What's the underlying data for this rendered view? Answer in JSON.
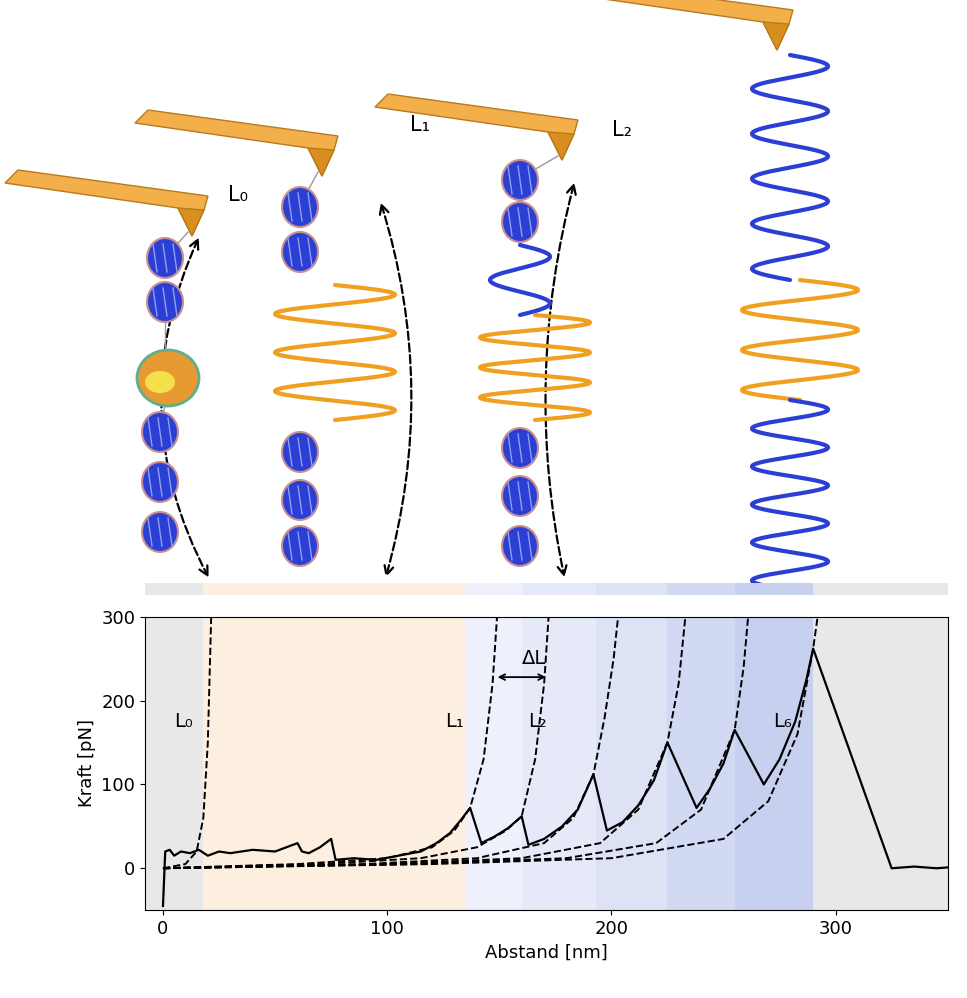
{
  "chart_data": {
    "type": "line",
    "x_label": "Abstand [nm]",
    "y_label": "Kraft [pN]",
    "xlim": [
      -8,
      350
    ],
    "ylim": [
      -50,
      300
    ],
    "xticks": [
      0,
      100,
      200,
      300
    ],
    "yticks": [
      0,
      100,
      200,
      300
    ],
    "grid": false,
    "regions": [
      {
        "x0": -8,
        "x1": 18,
        "color": "#e8e8e8"
      },
      {
        "x0": 18,
        "x1": 135,
        "color": "#fcefe0"
      },
      {
        "x0": 135,
        "x1": 160,
        "color": "#eef0fb"
      },
      {
        "x0": 160,
        "x1": 193,
        "color": "#e5e9f8"
      },
      {
        "x0": 193,
        "x1": 225,
        "color": "#dde2f5"
      },
      {
        "x0": 225,
        "x1": 255,
        "color": "#d2d9f2"
      },
      {
        "x0": 255,
        "x1": 290,
        "color": "#c8d0ef"
      },
      {
        "x0": 290,
        "x1": 350,
        "color": "#e8e8e8"
      }
    ],
    "series": [
      {
        "type": "line",
        "color": "#000000",
        "line_style": "solid",
        "x": [
          0,
          1,
          3,
          5,
          8,
          12,
          16,
          20,
          25,
          30,
          40,
          50,
          55,
          60,
          62,
          65,
          70,
          75,
          77,
          85,
          95,
          105,
          115,
          122,
          128,
          133,
          137,
          142,
          148,
          154,
          160,
          163,
          170,
          178,
          185,
          192,
          198,
          205,
          212,
          219,
          225,
          238,
          244,
          250,
          255,
          268,
          275,
          282,
          287,
          290,
          325,
          335,
          345,
          350
        ],
        "values": [
          -45,
          20,
          22,
          15,
          20,
          18,
          22,
          15,
          20,
          18,
          22,
          20,
          25,
          30,
          20,
          18,
          25,
          35,
          10,
          12,
          10,
          15,
          20,
          30,
          42,
          58,
          72,
          30,
          38,
          48,
          62,
          28,
          35,
          50,
          70,
          112,
          45,
          55,
          75,
          105,
          150,
          72,
          95,
          125,
          165,
          100,
          130,
          175,
          225,
          262,
          0,
          2,
          0,
          1
        ]
      },
      {
        "type": "line",
        "color": "#000000",
        "line_style": "dashed",
        "x": [
          0,
          10,
          15,
          18,
          20,
          21.5
        ],
        "values": [
          0,
          5,
          20,
          60,
          150,
          300
        ]
      },
      {
        "type": "line",
        "color": "#000000",
        "line_style": "dashed",
        "x": [
          0,
          60,
          100,
          120,
          130,
          137,
          143,
          147,
          149
        ],
        "values": [
          0,
          5,
          12,
          25,
          45,
          72,
          130,
          220,
          300
        ]
      },
      {
        "type": "line",
        "color": "#000000",
        "line_style": "dashed",
        "x": [
          0,
          70,
          115,
          140,
          153,
          160,
          166,
          170,
          172
        ],
        "values": [
          0,
          5,
          12,
          25,
          45,
          62,
          130,
          220,
          300
        ]
      },
      {
        "type": "line",
        "color": "#000000",
        "line_style": "dashed",
        "x": [
          0,
          90,
          140,
          170,
          183,
          192,
          197,
          201,
          203
        ],
        "values": [
          0,
          5,
          12,
          30,
          60,
          112,
          180,
          250,
          300
        ]
      },
      {
        "type": "line",
        "color": "#000000",
        "line_style": "dashed",
        "x": [
          0,
          100,
          160,
          195,
          212,
          225,
          230,
          233
        ],
        "values": [
          0,
          5,
          12,
          30,
          70,
          150,
          220,
          300
        ]
      },
      {
        "type": "line",
        "color": "#000000",
        "line_style": "dashed",
        "x": [
          0,
          110,
          180,
          220,
          240,
          255,
          259,
          261
        ],
        "values": [
          0,
          5,
          12,
          30,
          70,
          165,
          240,
          300
        ]
      },
      {
        "type": "line",
        "color": "#000000",
        "line_style": "dashed",
        "x": [
          0,
          120,
          200,
          250,
          270,
          283,
          290,
          292
        ],
        "values": [
          0,
          5,
          12,
          35,
          80,
          160,
          262,
          300
        ]
      }
    ],
    "annotations": [
      {
        "text": "L₀",
        "x": 5,
        "y": 175
      },
      {
        "text": "L₁",
        "x": 126,
        "y": 175
      },
      {
        "text": "L₂",
        "x": 163,
        "y": 175
      },
      {
        "text": "L₆",
        "x": 272,
        "y": 175
      },
      {
        "text": "ΔL",
        "x": 160,
        "y": 250,
        "arrow_x": [
          148,
          172
        ],
        "arrow_y": 228
      }
    ]
  },
  "illustration": {
    "labels": [
      "L₀",
      "L₁",
      "L₂"
    ]
  }
}
